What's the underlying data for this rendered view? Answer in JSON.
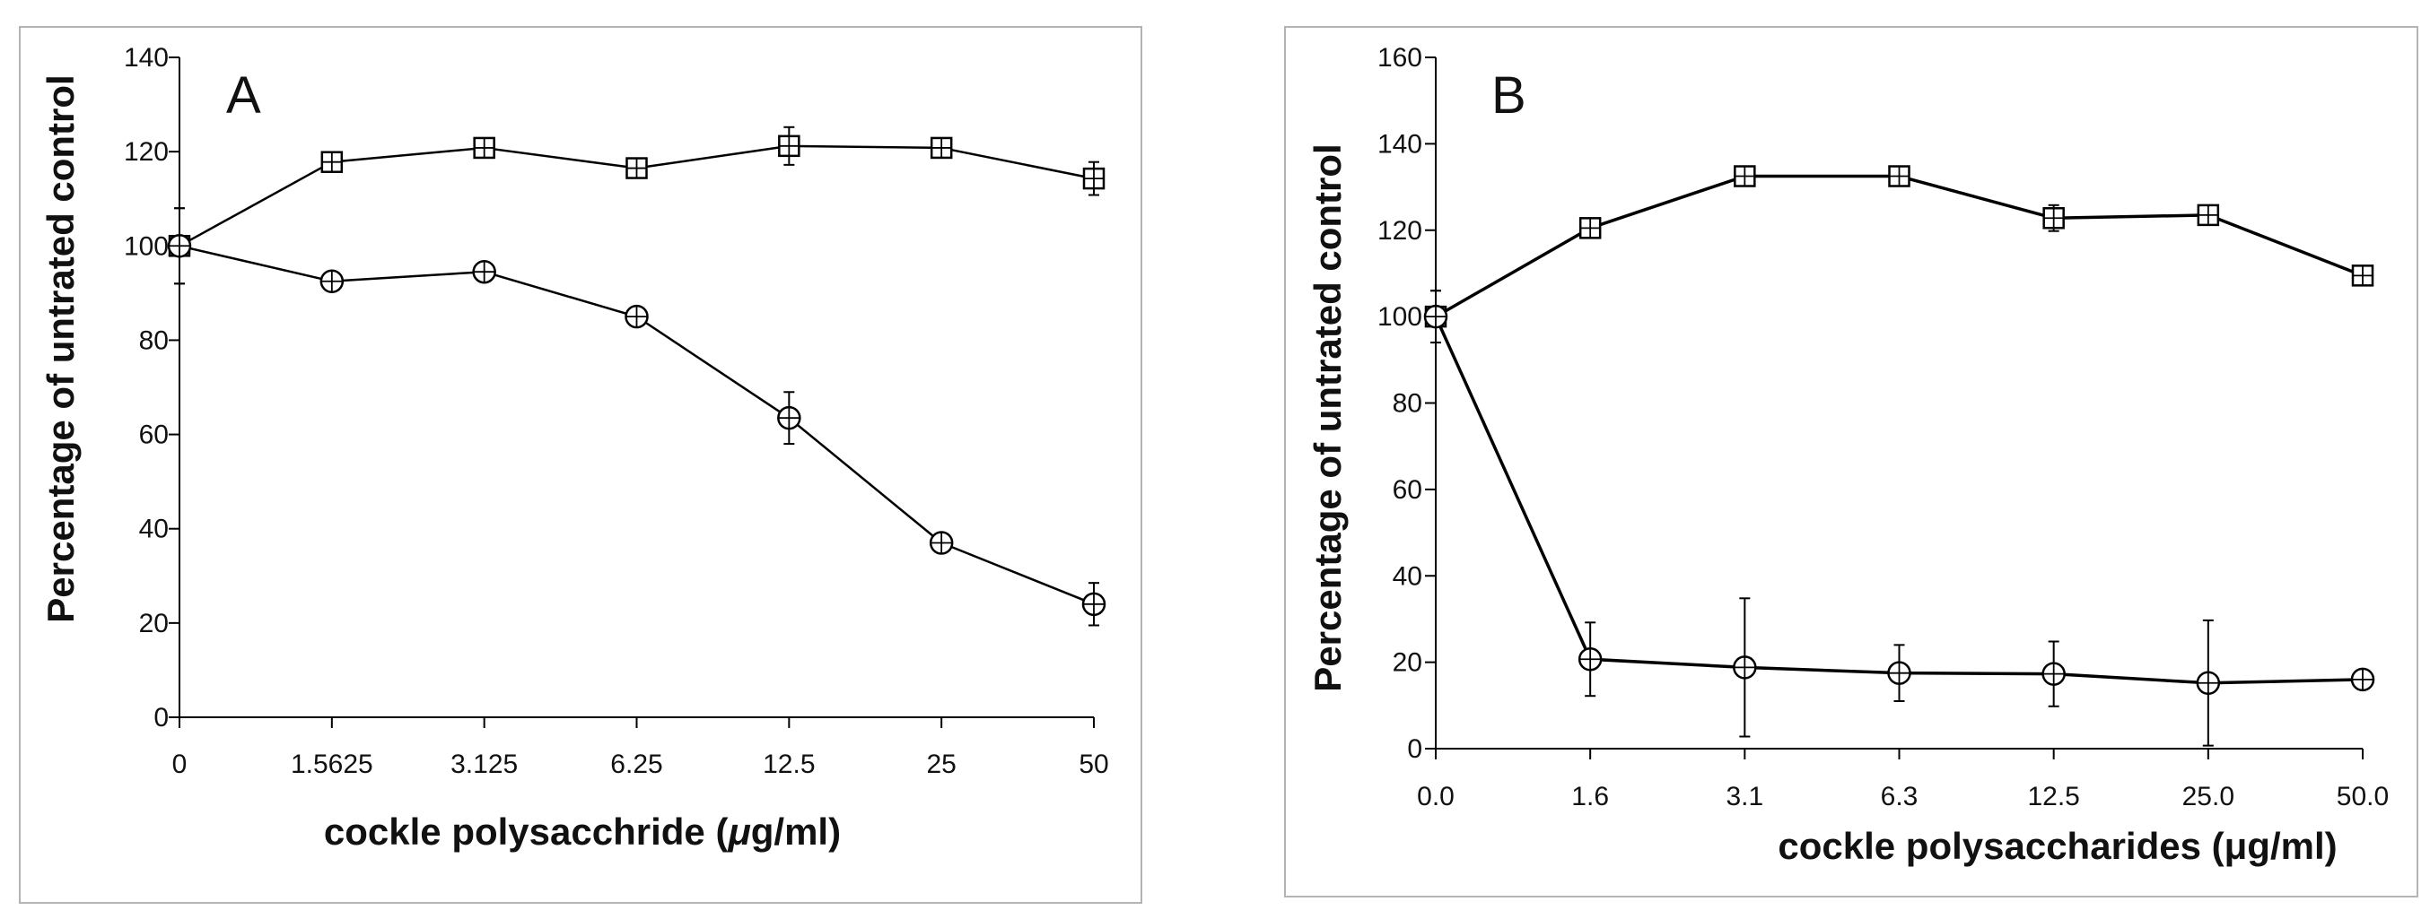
{
  "chart_data": [
    {
      "type": "line",
      "panel_label": "A",
      "xlabel_prefix": "cockle polysacchride (",
      "xlabel_mu": "μ",
      "xlabel_suffix": "g/ml)",
      "ylabel": "Percentage of untrated control",
      "categories": [
        "0",
        "1.5625",
        "3.125",
        "6.25",
        "12.5",
        "25",
        "50"
      ],
      "ylim": [
        0,
        140
      ],
      "yticks": [
        0,
        20,
        40,
        60,
        80,
        100,
        120,
        140
      ],
      "series": [
        {
          "name": "squares",
          "marker": "square",
          "values": [
            100,
            117.8,
            120.8,
            116.5,
            121.2,
            120.8,
            114.3
          ],
          "errors": [
            8,
            2,
            2,
            2,
            4,
            1.5,
            3.5
          ]
        },
        {
          "name": "circles",
          "marker": "circle",
          "values": [
            100,
            92.5,
            94.5,
            85,
            63.5,
            37,
            24
          ],
          "errors": [
            8,
            1.5,
            1.5,
            2,
            5.5,
            1.5,
            4.5
          ]
        }
      ]
    },
    {
      "type": "line",
      "panel_label": "B",
      "xlabel": "cockle polysaccharides (μg/ml)",
      "ylabel": "Percentage of untrated control",
      "categories": [
        "0.0",
        "1.6",
        "3.1",
        "6.3",
        "12.5",
        "25.0",
        "50.0"
      ],
      "ylim": [
        0,
        160
      ],
      "yticks": [
        0,
        20,
        40,
        60,
        80,
        100,
        120,
        140,
        160
      ],
      "series": [
        {
          "name": "squares",
          "marker": "square",
          "values": [
            100,
            120.5,
            132.5,
            132.5,
            122.8,
            123.5,
            109.5
          ],
          "errors": [
            6,
            1.5,
            2,
            1.5,
            3,
            2,
            1.5
          ]
        },
        {
          "name": "circles",
          "marker": "circle",
          "values": [
            100,
            20.7,
            18.8,
            17.5,
            17.3,
            15.2,
            16
          ],
          "errors": [
            6,
            8.5,
            16,
            6.5,
            7.5,
            14.5,
            1.5
          ]
        }
      ]
    }
  ]
}
